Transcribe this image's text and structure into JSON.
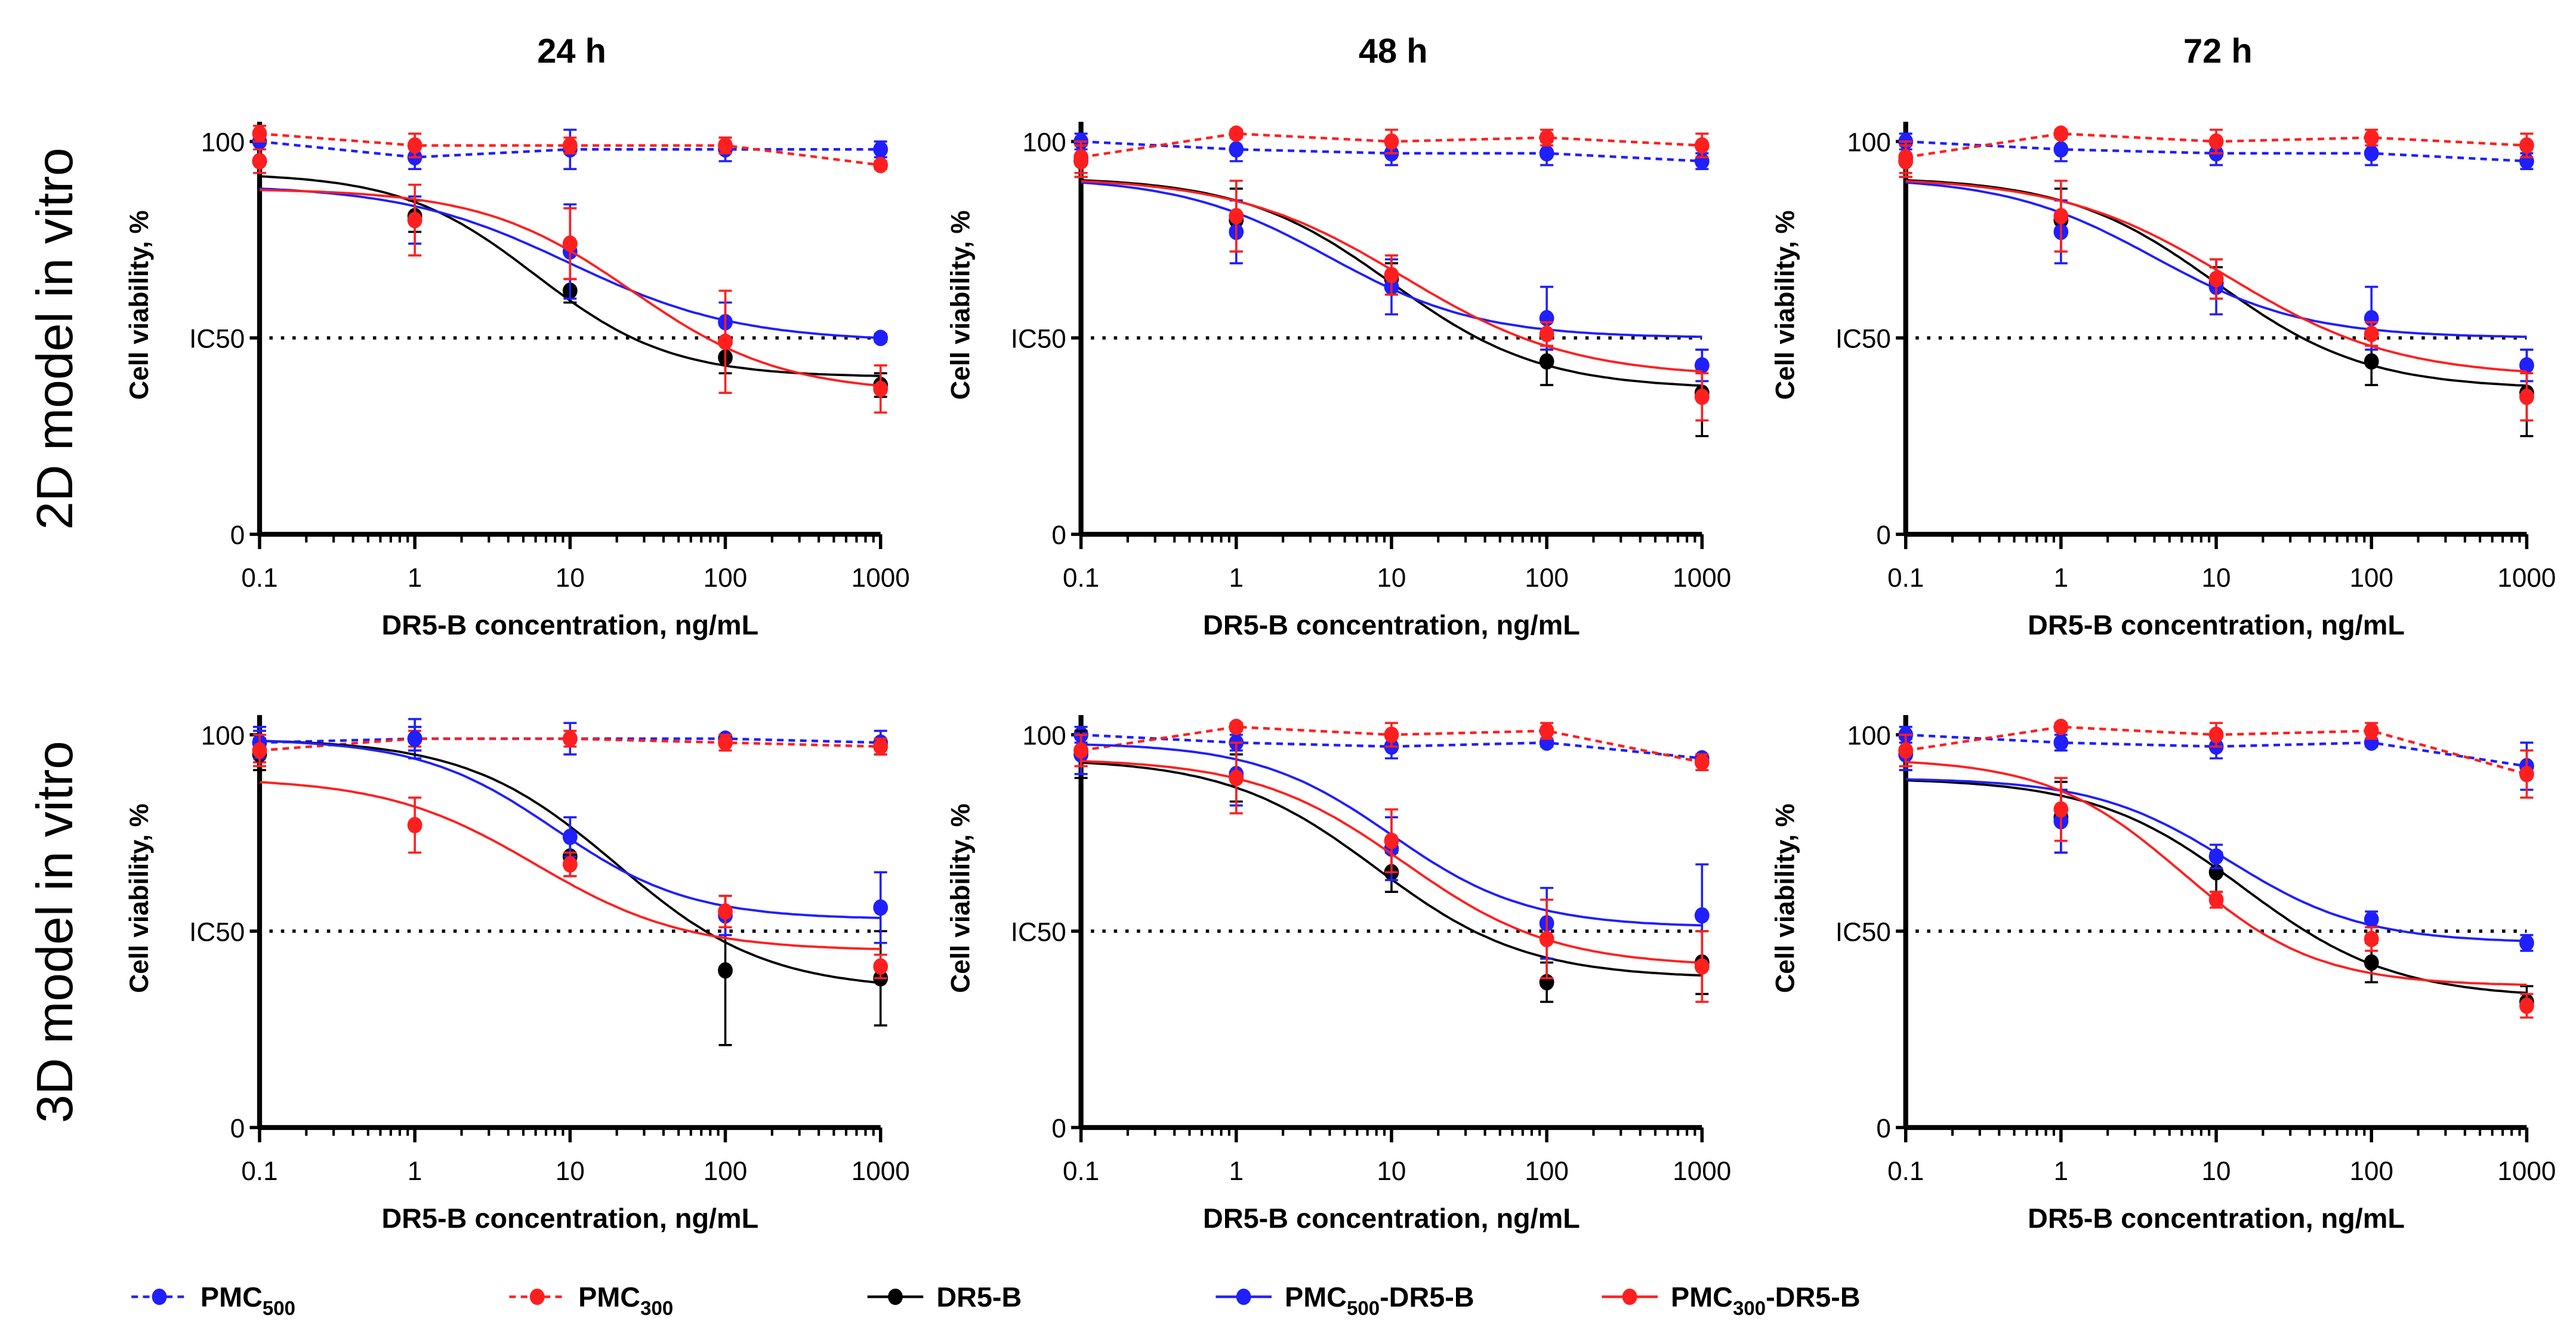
{
  "colors": {
    "PMC500": "#1f1fff",
    "PMC300": "#ff1f1f",
    "DR5-B": "#000000",
    "PMC500-DR5-B": "#1f1fff",
    "PMC300-DR5-B": "#ff1f1f"
  },
  "column_titles": [
    "24 h",
    "48 h",
    "72 h"
  ],
  "row_labels": [
    "2D model in vitro",
    "3D model in vitro"
  ],
  "legend": [
    {
      "key": "PMC500",
      "parts": [
        "PMC",
        "500",
        ""
      ],
      "style": "dashed",
      "color": "#1f1fff"
    },
    {
      "key": "PMC300",
      "parts": [
        "PMC",
        "300",
        ""
      ],
      "style": "dashed",
      "color": "#ff1f1f"
    },
    {
      "key": "DR5-B",
      "parts": [
        "DR5-B",
        "",
        ""
      ],
      "style": "solid",
      "color": "#000000"
    },
    {
      "key": "PMC500-DR5-B",
      "parts": [
        "PMC",
        "500",
        "-DR5-B"
      ],
      "style": "solid",
      "color": "#1f1fff"
    },
    {
      "key": "PMC300-DR5-B",
      "parts": [
        "PMC",
        "300",
        "-DR5-B"
      ],
      "style": "solid",
      "color": "#ff1f1f"
    }
  ],
  "chart_data": [
    {
      "type": "line",
      "title": "24 h",
      "row": "2D model in vitro",
      "xlabel": "DR5-B concentration, ng/mL",
      "ylabel": "Cell viability, %",
      "xscale": "log",
      "xlim": [
        0.1,
        1000
      ],
      "ylim": [
        0,
        100
      ],
      "x": [
        0.1,
        1,
        10,
        100,
        1000
      ],
      "x_tick_labels": [
        "0.1",
        "1",
        "10",
        "100",
        "1000"
      ],
      "y_tick_labels": [
        "0",
        "IC50",
        "100"
      ],
      "reference_line": {
        "y": 50,
        "label": "IC50",
        "style": "dotted"
      },
      "series": [
        {
          "name": "PMC500",
          "values": [
            100,
            96,
            98,
            98,
            98
          ],
          "err": [
            2,
            3,
            5,
            3,
            2
          ],
          "line": "dashed"
        },
        {
          "name": "PMC300",
          "values": [
            102,
            99,
            99,
            99,
            94
          ],
          "err": [
            2,
            3,
            2,
            2,
            1
          ],
          "line": "dashed"
        },
        {
          "name": "DR5-B",
          "values": [
            95,
            81,
            62,
            45,
            38
          ],
          "err": [
            3,
            4,
            3,
            4,
            3
          ],
          "line": "solid",
          "fit": {
            "top": 92,
            "bottom": 40,
            "ec50": 6,
            "hill": 1.0
          }
        },
        {
          "name": "PMC500-DR5-B",
          "values": [
            95,
            80,
            72,
            54,
            50
          ],
          "err": [
            3,
            6,
            12,
            5,
            1
          ],
          "line": "solid",
          "fit": {
            "top": 89,
            "bottom": 49,
            "ec50": 10,
            "hill": 0.8
          }
        },
        {
          "name": "PMC300-DR5-B",
          "values": [
            95,
            80,
            74,
            49,
            37
          ],
          "err": [
            3,
            9,
            9,
            13,
            6
          ],
          "line": "solid",
          "fit": {
            "top": 88,
            "bottom": 36,
            "ec50": 25,
            "hill": 0.9
          }
        }
      ]
    },
    {
      "type": "line",
      "title": "48 h",
      "row": "2D model in vitro",
      "xlabel": "DR5-B concentration, ng/mL",
      "ylabel": "Cell viability, %",
      "xscale": "log",
      "xlim": [
        0.1,
        1000
      ],
      "ylim": [
        0,
        100
      ],
      "x": [
        0.1,
        1,
        10,
        100,
        1000
      ],
      "x_tick_labels": [
        "0.1",
        "1",
        "10",
        "100",
        "1000"
      ],
      "y_tick_labels": [
        "0",
        "IC50",
        "100"
      ],
      "reference_line": {
        "y": 50,
        "label": "IC50",
        "style": "dotted"
      },
      "series": [
        {
          "name": "PMC500",
          "values": [
            100,
            98,
            97,
            97,
            95
          ],
          "err": [
            2,
            3,
            3,
            3,
            2
          ],
          "line": "dashed"
        },
        {
          "name": "PMC300",
          "values": [
            96,
            102,
            100,
            101,
            99
          ],
          "err": [
            4,
            1,
            3,
            2,
            3
          ],
          "line": "dashed"
        },
        {
          "name": "DR5-B",
          "values": [
            95,
            80,
            65,
            44,
            36
          ],
          "err": [
            4,
            8,
            4,
            6,
            11
          ],
          "line": "solid",
          "fit": {
            "top": 91,
            "bottom": 37,
            "ec50": 10,
            "hill": 0.9
          }
        },
        {
          "name": "PMC500-DR5-B",
          "values": [
            95,
            77,
            63,
            55,
            43
          ],
          "err": [
            4,
            8,
            7,
            8,
            4
          ],
          "line": "solid",
          "fit": {
            "top": 91,
            "bottom": 50,
            "ec50": 4,
            "hill": 0.9
          }
        },
        {
          "name": "PMC300-DR5-B",
          "values": [
            95,
            81,
            66,
            51,
            35
          ],
          "err": [
            4,
            9,
            5,
            3,
            6
          ],
          "line": "solid",
          "fit": {
            "top": 91,
            "bottom": 40,
            "ec50": 12,
            "hill": 0.8
          }
        }
      ]
    },
    {
      "type": "line",
      "title": "72 h",
      "row": "2D model in vitro",
      "xlabel": "DR5-B concentration, ng/mL",
      "ylabel": "Cell viability, %",
      "xscale": "log",
      "xlim": [
        0.1,
        1000
      ],
      "ylim": [
        0,
        100
      ],
      "x": [
        0.1,
        1,
        10,
        100,
        1000
      ],
      "x_tick_labels": [
        "0.1",
        "1",
        "10",
        "100",
        "1000"
      ],
      "y_tick_labels": [
        "0",
        "IC50",
        "100"
      ],
      "reference_line": {
        "y": 50,
        "label": "IC50",
        "style": "dotted"
      },
      "series": [
        {
          "name": "PMC500",
          "values": [
            100,
            98,
            97,
            97,
            95
          ],
          "err": [
            2,
            3,
            3,
            3,
            2
          ],
          "line": "dashed"
        },
        {
          "name": "PMC300",
          "values": [
            96,
            102,
            100,
            101,
            99
          ],
          "err": [
            4,
            1,
            3,
            2,
            3
          ],
          "line": "dashed"
        },
        {
          "name": "DR5-B",
          "values": [
            95,
            80,
            64,
            44,
            36
          ],
          "err": [
            4,
            8,
            4,
            6,
            11
          ],
          "line": "solid",
          "fit": {
            "top": 91,
            "bottom": 37,
            "ec50": 10,
            "hill": 0.9
          }
        },
        {
          "name": "PMC500-DR5-B",
          "values": [
            95,
            77,
            63,
            55,
            43
          ],
          "err": [
            4,
            8,
            7,
            8,
            4
          ],
          "line": "solid",
          "fit": {
            "top": 91,
            "bottom": 50,
            "ec50": 4,
            "hill": 0.9
          }
        },
        {
          "name": "PMC300-DR5-B",
          "values": [
            95,
            81,
            65,
            51,
            35
          ],
          "err": [
            4,
            9,
            5,
            3,
            6
          ],
          "line": "solid",
          "fit": {
            "top": 91,
            "bottom": 40,
            "ec50": 12,
            "hill": 0.8
          }
        }
      ]
    },
    {
      "type": "line",
      "title": "24 h",
      "row": "3D model in vitro",
      "xlabel": "DR5-B concentration, ng/mL",
      "ylabel": "Cell viability, %",
      "xscale": "log",
      "xlim": [
        0.1,
        1000
      ],
      "ylim": [
        0,
        100
      ],
      "x": [
        0.1,
        1,
        10,
        100,
        1000
      ],
      "x_tick_labels": [
        "0.1",
        "1",
        "10",
        "100",
        "1000"
      ],
      "y_tick_labels": [
        "0",
        "IC50",
        "100"
      ],
      "reference_line": {
        "y": 50,
        "label": "IC50",
        "style": "dotted"
      },
      "series": [
        {
          "name": "PMC500",
          "values": [
            98,
            99,
            99,
            99,
            98
          ],
          "err": [
            3,
            5,
            4,
            1,
            3
          ],
          "line": "dashed"
        },
        {
          "name": "PMC300",
          "values": [
            96,
            99,
            99,
            98,
            97
          ],
          "err": [
            3,
            2,
            2,
            2,
            2
          ],
          "line": "dashed"
        },
        {
          "name": "DR5-B",
          "values": [
            95,
            99,
            69,
            40,
            38
          ],
          "err": [
            4,
            3,
            5,
            19,
            12
          ],
          "line": "solid",
          "fit": {
            "top": 99,
            "bottom": 35,
            "ec50": 20,
            "hill": 0.9
          }
        },
        {
          "name": "PMC500-DR5-B",
          "values": [
            98,
            99,
            74,
            54,
            56
          ],
          "err": [
            4,
            3,
            5,
            5,
            9
          ],
          "line": "solid",
          "fit": {
            "top": 99,
            "bottom": 53,
            "ec50": 8,
            "hill": 1.0
          }
        },
        {
          "name": "PMC300-DR5-B",
          "values": [
            96,
            77,
            67,
            55,
            41
          ],
          "err": [
            4,
            7,
            3,
            4,
            3
          ],
          "line": "solid",
          "fit": {
            "top": 89,
            "bottom": 45,
            "ec50": 6,
            "hill": 0.9
          }
        }
      ]
    },
    {
      "type": "line",
      "title": "48 h",
      "row": "3D model in vitro",
      "xlabel": "DR5-B concentration, ng/mL",
      "ylabel": "Cell viability, %",
      "xscale": "log",
      "xlim": [
        0.1,
        1000
      ],
      "ylim": [
        0,
        100
      ],
      "x": [
        0.1,
        1,
        10,
        100,
        1000
      ],
      "x_tick_labels": [
        "0.1",
        "1",
        "10",
        "100",
        "1000"
      ],
      "y_tick_labels": [
        "0",
        "IC50",
        "100"
      ],
      "reference_line": {
        "y": 50,
        "label": "IC50",
        "style": "dotted"
      },
      "series": [
        {
          "name": "PMC500",
          "values": [
            100,
            98,
            97,
            98,
            94
          ],
          "err": [
            2,
            2,
            3,
            1,
            1
          ],
          "line": "dashed"
        },
        {
          "name": "PMC300",
          "values": [
            96,
            102,
            100,
            101,
            93
          ],
          "err": [
            4,
            1,
            3,
            2,
            2
          ],
          "line": "dashed"
        },
        {
          "name": "DR5-B",
          "values": [
            95,
            89,
            65,
            37,
            42
          ],
          "err": [
            6,
            6,
            5,
            5,
            8
          ],
          "line": "solid",
          "fit": {
            "top": 94,
            "bottom": 38,
            "ec50": 8,
            "hill": 0.9
          }
        },
        {
          "name": "PMC500-DR5-B",
          "values": [
            95,
            90,
            71,
            52,
            54
          ],
          "err": [
            5,
            8,
            8,
            9,
            13
          ],
          "line": "solid",
          "fit": {
            "top": 98,
            "bottom": 51,
            "ec50": 10,
            "hill": 1.0
          }
        },
        {
          "name": "PMC300-DR5-B",
          "values": [
            96,
            89,
            73,
            48,
            41
          ],
          "err": [
            4,
            9,
            8,
            10,
            9
          ],
          "line": "solid",
          "fit": {
            "top": 94,
            "bottom": 41,
            "ec50": 12,
            "hill": 0.9
          }
        }
      ]
    },
    {
      "type": "line",
      "title": "72 h",
      "row": "3D model in vitro",
      "xlabel": "DR5-B concentration, ng/mL",
      "ylabel": "Cell viability, %",
      "xscale": "log",
      "xlim": [
        0.1,
        1000
      ],
      "ylim": [
        0,
        100
      ],
      "x": [
        0.1,
        1,
        10,
        100,
        1000
      ],
      "x_tick_labels": [
        "0.1",
        "1",
        "10",
        "100",
        "1000"
      ],
      "y_tick_labels": [
        "0",
        "IC50",
        "100"
      ],
      "reference_line": {
        "y": 50,
        "label": "IC50",
        "style": "dotted"
      },
      "series": [
        {
          "name": "PMC500",
          "values": [
            100,
            98,
            97,
            98,
            92
          ],
          "err": [
            2,
            2,
            3,
            1,
            6
          ],
          "line": "dashed"
        },
        {
          "name": "PMC300",
          "values": [
            96,
            102,
            100,
            101,
            90
          ],
          "err": [
            4,
            1,
            3,
            2,
            6
          ],
          "line": "dashed"
        },
        {
          "name": "DR5-B",
          "values": [
            95,
            79,
            65,
            42,
            32
          ],
          "err": [
            4,
            9,
            5,
            5,
            4
          ],
          "line": "solid",
          "fit": {
            "top": 89,
            "bottom": 33,
            "ec50": 15,
            "hill": 0.9
          }
        },
        {
          "name": "PMC500-DR5-B",
          "values": [
            95,
            78,
            69,
            53,
            47
          ],
          "err": [
            4,
            8,
            3,
            2,
            2
          ],
          "line": "solid",
          "fit": {
            "top": 89,
            "bottom": 47,
            "ec50": 12,
            "hill": 1.0
          }
        },
        {
          "name": "PMC300-DR5-B",
          "values": [
            96,
            81,
            58,
            48,
            31
          ],
          "err": [
            4,
            8,
            2,
            3,
            3
          ],
          "line": "solid",
          "fit": {
            "top": 94,
            "bottom": 36,
            "ec50": 6,
            "hill": 1.0
          }
        }
      ]
    }
  ]
}
